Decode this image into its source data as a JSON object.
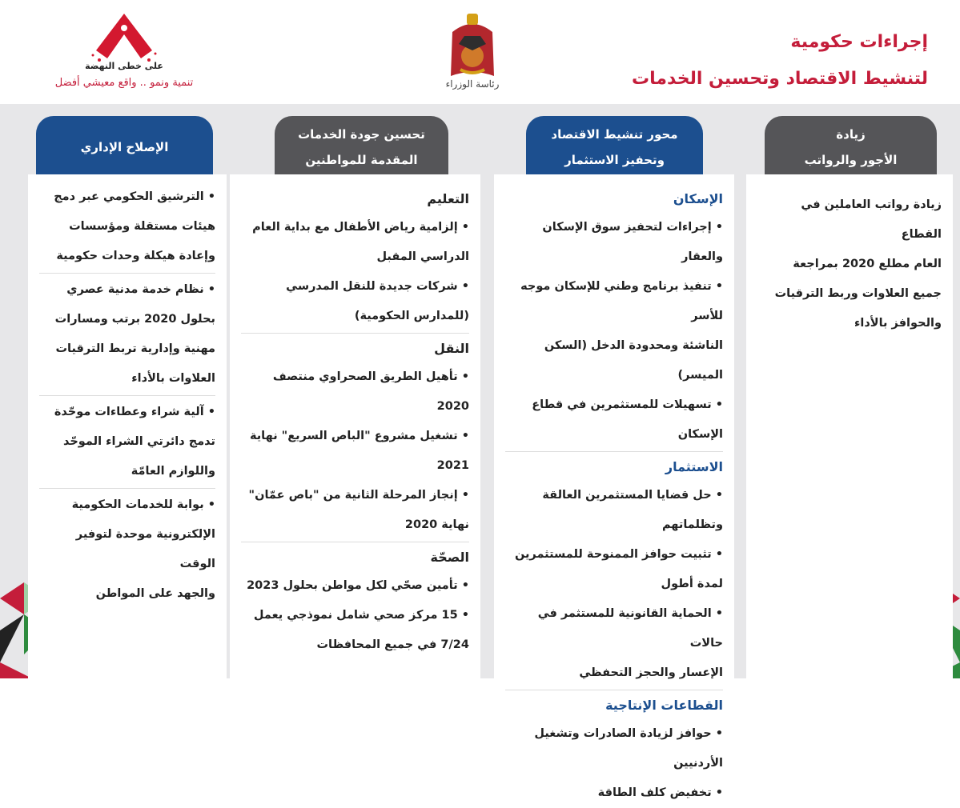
{
  "header": {
    "title_line1": "إجراءات حكومية",
    "title_line2": "لتنشيط الاقتصاد وتحسين الخدمات",
    "crest_caption": "رئاسة الوزراء",
    "logo_subtitle": "على خطى النهضة",
    "logo_tagline": "تنمية ونمو .. واقع معيشي أفضل"
  },
  "colors": {
    "accent_red": "#c41d3a",
    "blue": "#1c4f8f",
    "gray": "#555558",
    "band": "#e7e7e9"
  },
  "columns": [
    {
      "tab": [
        "زيادة",
        "الأجور والرواتب"
      ],
      "items": [
        "زيادة رواتب العاملين في القطاع",
        "العام مطلع 2020 بمراجعة",
        "جميع العلاوات وربط الترقيات",
        "والحوافز بالأداء"
      ]
    },
    {
      "tab": [
        "محور تنشيط الاقتصاد",
        "وتحفيز الاستثمار"
      ],
      "sections": [
        {
          "title": "الإسكان",
          "items": [
            "• إجراءات لتحفيز سوق الإسكان والعقار",
            "• تنفيذ برنامج وطني للإسكان موجه للأسر",
            "الناشئة ومحدودة الدخل (السكن الميسر)",
            "• تسهيلات للمستثمرين في قطاع الإسكان"
          ]
        },
        {
          "title": "الاستثمار",
          "items": [
            "• حل قضايا المستثمرين العالقة",
            "وتظلماتهم",
            "• تثبيت حوافز الممنوحة للمستثمرين",
            "لمدة أطول",
            "• الحماية القانونية للمستثمر في حالات",
            "الإعسار والحجز التحفظي"
          ]
        },
        {
          "title": "القطاعات الإنتاجية",
          "items": [
            "• حوافز لزيادة الصادرات وتشغيل",
            "الأردنيين",
            "• تخفيض كلف الطاقة"
          ]
        }
      ]
    },
    {
      "tab": [
        "تحسين جودة الخدمات",
        "المقدمة للمواطنين"
      ],
      "sections": [
        {
          "title": "التعليم",
          "items": [
            "• إلزامية رياض الأطفال مع بداية العام",
            "الدراسي المقبل",
            "• شركات جديدة للنقل المدرسي",
            "(للمدارس الحكومية)"
          ]
        },
        {
          "title": "النقل",
          "items": [
            "• تأهيل الطريق الصحراوي منتصف 2020",
            "• تشغيل مشروع \"الباص السريع\" نهاية",
            "2021",
            "• إنجاز المرحلة الثانية من \"باص عمّان\"",
            "نهاية 2020"
          ]
        },
        {
          "title": "الصحّة",
          "items": [
            "• تأمين صحّي لكل مواطن بحلول 2023",
            "• 15 مركز صحي شامل نموذجي يعمل",
            "7/24 في جميع المحافظات"
          ]
        }
      ]
    },
    {
      "tab": [
        "الإصلاح الإداري"
      ],
      "groups": [
        [
          "• الترشيق الحكومي عبر دمج",
          "هيئات مستقلة ومؤسسات",
          "وإعادة هيكلة وحدات حكومية"
        ],
        [
          "• نظام خدمة مدنية عصري",
          "بحلول 2020 برتب ومسارات",
          "مهنية وإدارية تربط الترقيات",
          "العلاوات بالأداء"
        ],
        [
          "• آلية شراء وعطاءات موحّدة",
          "تدمج دائرتي الشراء الموحّد",
          "واللوازم العامّة"
        ],
        [
          "• بوابة للخدمات الحكومية",
          "الإلكترونية موحدة لتوفير الوقت",
          "والجهد على المواطن"
        ]
      ]
    }
  ]
}
